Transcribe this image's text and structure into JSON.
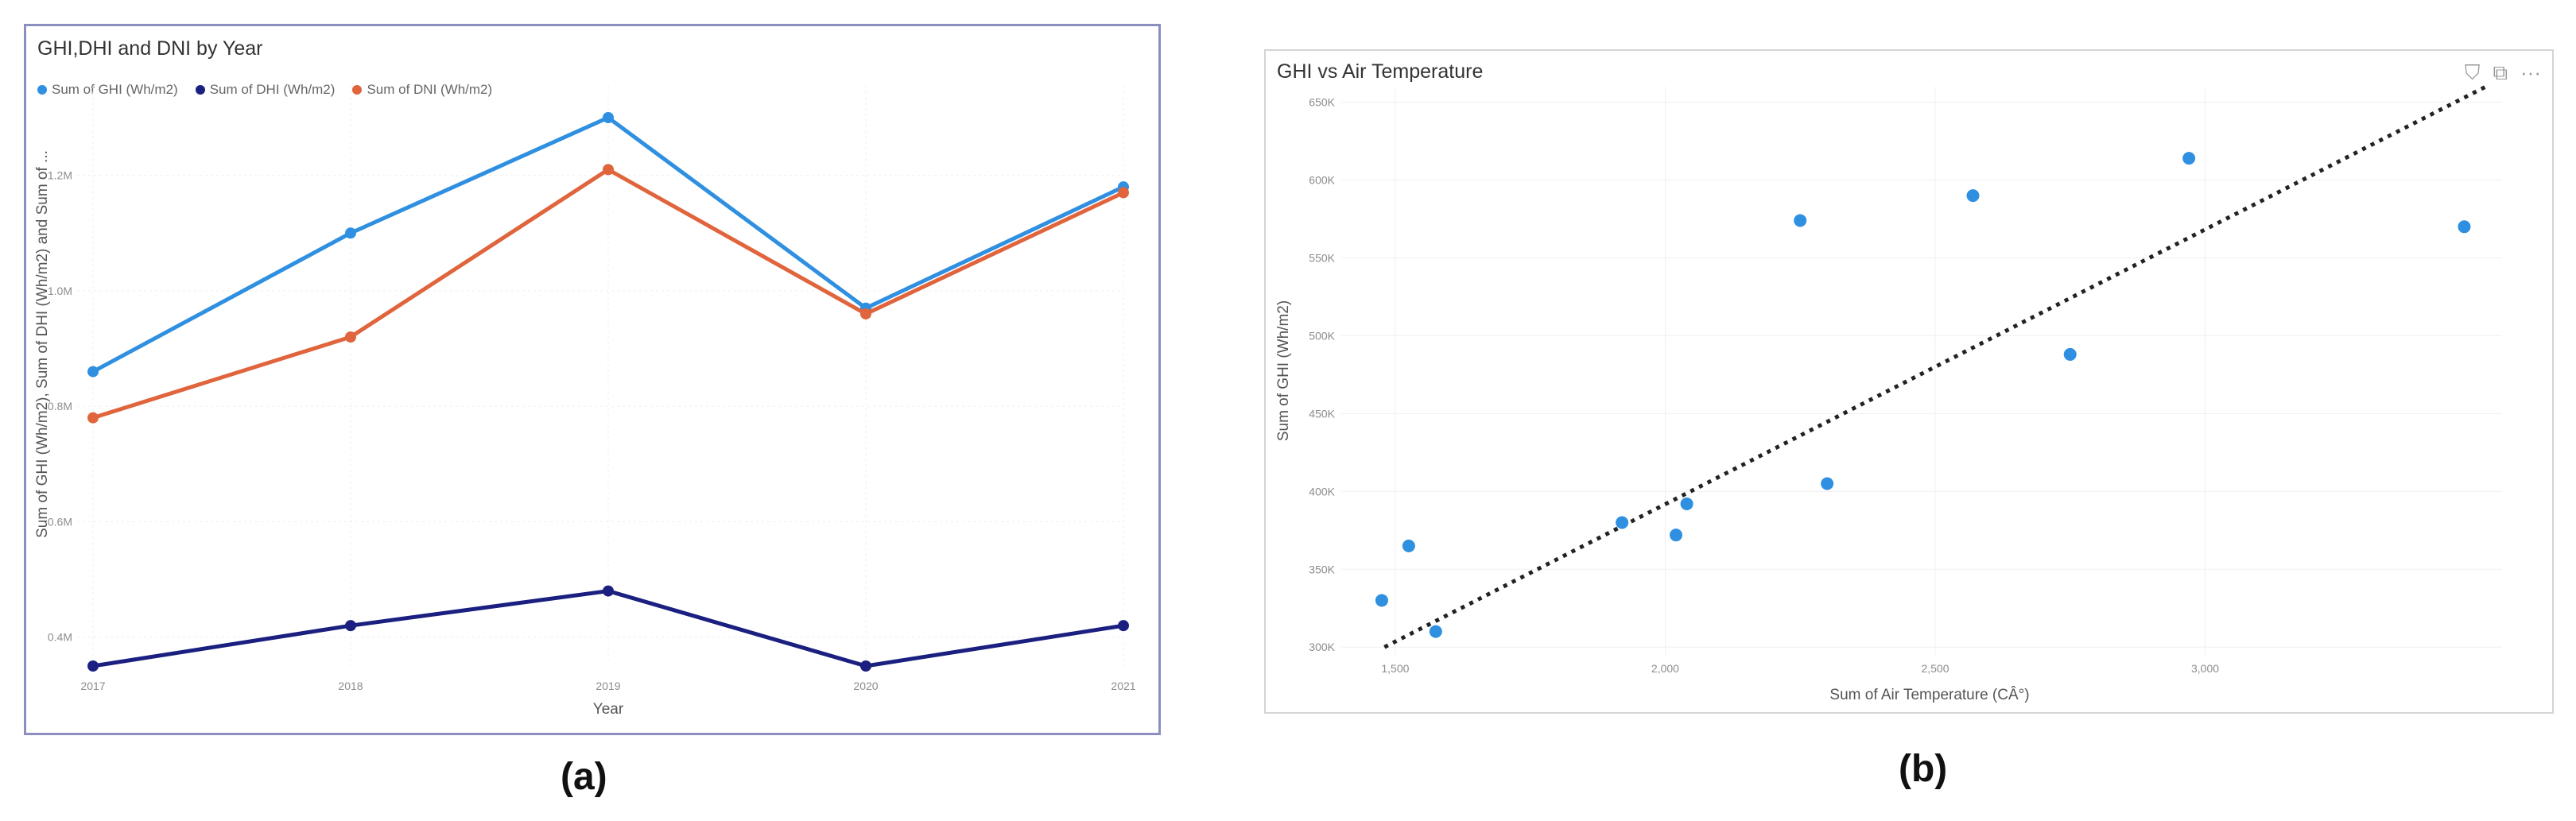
{
  "captions": {
    "a": "(a)",
    "b": "(b)"
  },
  "toolbar": {
    "filter_glyph": "⛉",
    "focus_glyph": "⧉",
    "more_glyph": "···"
  },
  "chart_data": [
    {
      "type": "line",
      "title": "GHI,DHI and DNI by Year",
      "xlabel": "Year",
      "ylabel": "Sum of GHI (Wh/m2), Sum of DHI (Wh/m2) and Sum of ...",
      "categories": [
        "2017",
        "2018",
        "2019",
        "2020",
        "2021"
      ],
      "ylim": [
        0.35,
        1.3
      ],
      "yticks": [
        0.4,
        0.6,
        0.8,
        1.0,
        1.2
      ],
      "ytick_labels": [
        "0.4M",
        "0.6M",
        "0.8M",
        "1.0M",
        "1.2M"
      ],
      "legend_position": "top-left",
      "grid": true,
      "series": [
        {
          "name": "Sum of GHI (Wh/m2)",
          "color": "#2f8fe0",
          "values": [
            0.86,
            1.1,
            1.3,
            0.97,
            1.18
          ]
        },
        {
          "name": "Sum of DHI (Wh/m2)",
          "color": "#1a1f80",
          "values": [
            0.35,
            0.42,
            0.48,
            0.35,
            0.42
          ]
        },
        {
          "name": "Sum of DNI (Wh/m2)",
          "color": "#e0643c",
          "values": [
            0.78,
            0.92,
            1.21,
            0.96,
            1.17
          ]
        }
      ]
    },
    {
      "type": "scatter",
      "title": "GHI vs Air Temperature",
      "xlabel": "Sum of Air Temperature (CÂ°)",
      "ylabel": "Sum of GHI (Wh/m2)",
      "xlim": [
        1400,
        3550
      ],
      "ylim": [
        295000,
        660000
      ],
      "xticks": [
        1500,
        2000,
        2500,
        3000
      ],
      "xtick_labels": [
        "1,500",
        "2,000",
        "2,500",
        "3,000"
      ],
      "yticks": [
        300000,
        350000,
        400000,
        450000,
        500000,
        550000,
        600000,
        650000
      ],
      "ytick_labels": [
        "300K",
        "350K",
        "400K",
        "450K",
        "500K",
        "550K",
        "600K",
        "650K"
      ],
      "grid": true,
      "point_color": "#2f8fe0",
      "trend_line": {
        "from": [
          1480,
          300000
        ],
        "to": [
          3520,
          660000
        ],
        "style": "dotted"
      },
      "points": [
        {
          "x": 1475,
          "y": 330000
        },
        {
          "x": 1525,
          "y": 365000
        },
        {
          "x": 1575,
          "y": 310000
        },
        {
          "x": 1920,
          "y": 380000
        },
        {
          "x": 2020,
          "y": 372000
        },
        {
          "x": 2040,
          "y": 392000
        },
        {
          "x": 2250,
          "y": 574000
        },
        {
          "x": 2300,
          "y": 405000
        },
        {
          "x": 2570,
          "y": 590000
        },
        {
          "x": 2750,
          "y": 488000
        },
        {
          "x": 2970,
          "y": 614000
        },
        {
          "x": 3480,
          "y": 570000
        }
      ]
    }
  ]
}
